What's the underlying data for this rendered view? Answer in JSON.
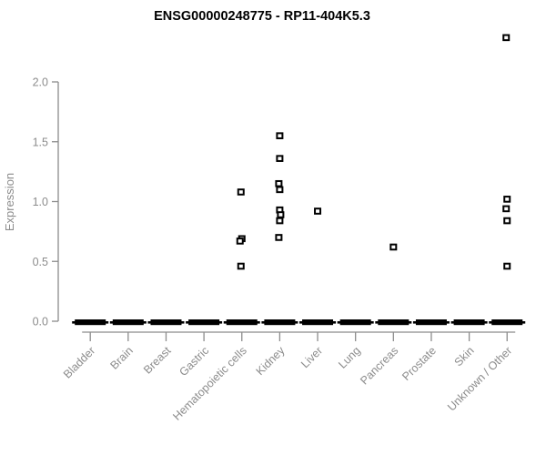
{
  "title": "ENSG00000248775 - RP11-404K5.3",
  "colors": {
    "marker": "#000000",
    "marker_fill": "#ffffff",
    "axis": "#8c8c8c",
    "title_text": "#000000",
    "background": "#ffffff"
  },
  "chart_data": {
    "type": "scatter",
    "subtype": "strip-plot-by-category",
    "title": "ENSG00000248775 - RP11-404K5.3",
    "xlabel": "",
    "ylabel": "Expression",
    "ylim": [
      0.0,
      2.45
    ],
    "yticks": [
      0.0,
      0.5,
      1.0,
      1.5,
      2.0
    ],
    "grid": false,
    "legend": "none",
    "marker": "small-open-black-square",
    "zero_cluster_note": "every category shows a dense thick black dash of overlapping samples at expression 0.0",
    "categories": [
      "Bladder",
      "Brain",
      "Breast",
      "Gastric",
      "Hematopoietic cells",
      "Kidney",
      "Liver",
      "Lung",
      "Pancreas",
      "Prostate",
      "Skin",
      "Unknown / Other"
    ],
    "series": [
      {
        "category": "Bladder",
        "zero_cluster": true,
        "points": []
      },
      {
        "category": "Brain",
        "zero_cluster": true,
        "points": []
      },
      {
        "category": "Breast",
        "zero_cluster": true,
        "points": []
      },
      {
        "category": "Gastric",
        "zero_cluster": true,
        "points": []
      },
      {
        "category": "Hematopoietic cells",
        "zero_cluster": true,
        "points": [
          {
            "v": 1.08,
            "dx": -1
          },
          {
            "v": 0.69,
            "dx": 0
          },
          {
            "v": 0.67,
            "dx": -2
          },
          {
            "v": 0.46,
            "dx": -1
          }
        ]
      },
      {
        "category": "Kidney",
        "zero_cluster": true,
        "points": [
          {
            "v": 1.55,
            "dx": 0
          },
          {
            "v": 1.36,
            "dx": 0
          },
          {
            "v": 1.15,
            "dx": -1
          },
          {
            "v": 1.1,
            "dx": 0
          },
          {
            "v": 0.93,
            "dx": 0
          },
          {
            "v": 0.89,
            "dx": 1
          },
          {
            "v": 0.84,
            "dx": 0
          },
          {
            "v": 0.7,
            "dx": -1
          }
        ]
      },
      {
        "category": "Liver",
        "zero_cluster": true,
        "points": [
          {
            "v": 0.92,
            "dx": 0
          }
        ]
      },
      {
        "category": "Lung",
        "zero_cluster": true,
        "points": []
      },
      {
        "category": "Pancreas",
        "zero_cluster": true,
        "points": [
          {
            "v": 0.62,
            "dx": 0
          }
        ]
      },
      {
        "category": "Prostate",
        "zero_cluster": true,
        "points": []
      },
      {
        "category": "Skin",
        "zero_cluster": true,
        "points": []
      },
      {
        "category": "Unknown / Other",
        "zero_cluster": true,
        "points": [
          {
            "v": 2.37,
            "dx": -1
          },
          {
            "v": 1.02,
            "dx": 0
          },
          {
            "v": 0.94,
            "dx": -1
          },
          {
            "v": 0.84,
            "dx": 0
          },
          {
            "v": 0.46,
            "dx": 0
          }
        ]
      }
    ]
  }
}
